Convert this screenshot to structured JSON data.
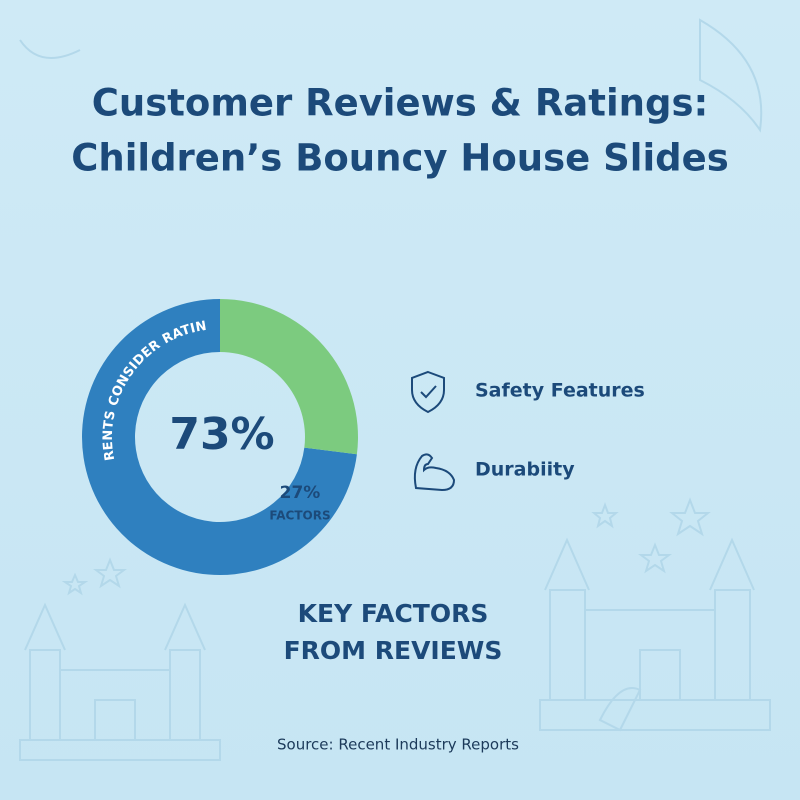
{
  "chart_data": {
    "type": "donut",
    "title": "Customer Reviews & Ratings:",
    "subtitle": "Children’s Bouncy House Slides",
    "categories": [
      "PARENTS CONSIDER RATINGS",
      "FACTORS"
    ],
    "values": [
      73,
      27
    ],
    "value_labels": [
      "73%",
      "27%"
    ],
    "colors": [
      "#2f80bf",
      "#7ccb7f"
    ]
  },
  "key_factors": {
    "items": [
      "Safety Features",
      "Durabiity"
    ],
    "heading": [
      "KEY FACTORS",
      "FROM REVIEWS"
    ]
  },
  "source": "Source: Recent Industry Reports"
}
